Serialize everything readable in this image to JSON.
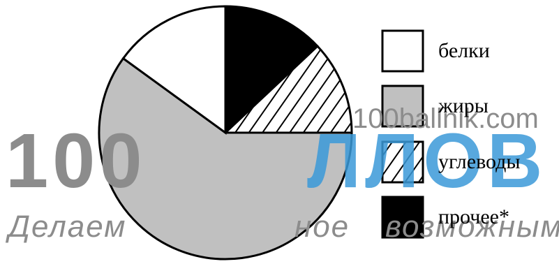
{
  "chart_data": {
    "type": "pie",
    "title": "",
    "slices": [
      {
        "label": "белки",
        "value": 15,
        "color": "#ffffff",
        "pattern": "none"
      },
      {
        "label": "жиры",
        "value": 60,
        "color": "#c0c0c0",
        "pattern": "none"
      },
      {
        "label": "углеводы",
        "value": 12,
        "color": "#ffffff",
        "pattern": "hatch"
      },
      {
        "label": "прочее*",
        "value": 13,
        "color": "#000000",
        "pattern": "none"
      }
    ],
    "legend_position": "right"
  },
  "watermark": {
    "logo": "100",
    "logo_tail": "ЛЛОВ",
    "site": "100ballnik.com",
    "slogan_a": "Делаем",
    "slogan_b": "ное",
    "slogan_c": "возможным",
    "color": "#8c8c8c",
    "accent": "#3b9ad9"
  }
}
